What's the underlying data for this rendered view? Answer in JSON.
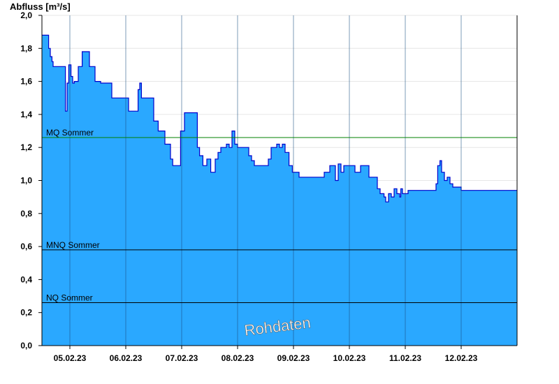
{
  "chart_data": {
    "type": "area",
    "ylabel": "Abfluss [m³/s]",
    "ylim": [
      0,
      2.0
    ],
    "y_ticks": [
      "0,0",
      "0,2",
      "0,4",
      "0,6",
      "0,8",
      "1,0",
      "1,2",
      "1,4",
      "1,6",
      "1,8",
      "2,0"
    ],
    "x_ticks": [
      "05.02.23",
      "06.02.23",
      "07.02.23",
      "08.02.23",
      "09.02.23",
      "10.02.23",
      "11.02.23",
      "12.02.23"
    ],
    "x_range_days": [
      "04.02.23 12:00",
      "13.02.23 00:00"
    ],
    "grid": true,
    "fill_color": "#2aa8ff",
    "line_color": "#0000cc",
    "series": [
      {
        "x_days": [
          0,
          0.12,
          0.15,
          0.18,
          0.2,
          0.22,
          0.25,
          0.4,
          0.42,
          0.45,
          0.48,
          0.52,
          0.55,
          0.58,
          0.65,
          0.72,
          0.76,
          0.85,
          0.88,
          0.95,
          1.05,
          1.25,
          1.55,
          1.63,
          1.72,
          1.75,
          1.78,
          1.82,
          2.0,
          2.08,
          2.2,
          2.3,
          2.34,
          2.37,
          2.42,
          2.48,
          2.55,
          2.68,
          2.78,
          2.82,
          2.88,
          2.95,
          3.02,
          3.1,
          3.15,
          3.2,
          3.25,
          3.3,
          3.35,
          3.4,
          3.45,
          3.5,
          3.55,
          3.6,
          3.65,
          3.7,
          3.75,
          3.8,
          3.85,
          3.88,
          4.05,
          4.1,
          4.15,
          4.2,
          4.25,
          4.3,
          4.35,
          4.42,
          4.48,
          4.55,
          4.6,
          4.65,
          4.8,
          5.05,
          5.15,
          5.25,
          5.3,
          5.35,
          5.4,
          5.45,
          5.5,
          5.55,
          5.6,
          5.7,
          5.85,
          6.0,
          6.05,
          6.12,
          6.15,
          6.2,
          6.25,
          6.3,
          6.35,
          6.4,
          6.42,
          6.45,
          6.55,
          7.0,
          7.05,
          7.08,
          7.12,
          7.15,
          7.2,
          7.25,
          7.3,
          7.35,
          7.5
        ],
        "values": [
          1.88,
          1.8,
          1.75,
          1.72,
          1.69,
          1.69,
          1.69,
          1.69,
          1.42,
          1.59,
          1.7,
          1.63,
          1.59,
          1.6,
          1.69,
          1.78,
          1.78,
          1.69,
          1.69,
          1.6,
          1.59,
          1.5,
          1.42,
          1.42,
          1.55,
          1.59,
          1.5,
          1.5,
          1.36,
          1.3,
          1.22,
          1.13,
          1.09,
          1.09,
          1.09,
          1.3,
          1.41,
          1.41,
          1.2,
          1.15,
          1.09,
          1.13,
          1.05,
          1.13,
          1.17,
          1.2,
          1.2,
          1.22,
          1.2,
          1.3,
          1.22,
          1.2,
          1.2,
          1.2,
          1.2,
          1.15,
          1.12,
          1.09,
          1.09,
          1.09,
          1.13,
          1.2,
          1.2,
          1.22,
          1.2,
          1.22,
          1.17,
          1.09,
          1.05,
          1.05,
          1.02,
          1.02,
          1.02,
          1.05,
          1.09,
          1.0,
          1.1,
          1.05,
          1.09,
          1.09,
          1.09,
          1.09,
          1.05,
          1.09,
          1.02,
          0.95,
          0.92,
          0.9,
          0.87,
          0.92,
          0.9,
          0.95,
          0.92,
          0.9,
          0.95,
          0.92,
          0.94,
          0.94,
          0.98,
          1.09,
          1.12,
          1.05,
          1.0,
          1.02,
          0.98,
          0.96,
          0.94
        ],
        "note": ""
      }
    ],
    "reference_lines": [
      {
        "label": "MQ Sommer",
        "value": 1.26,
        "color": "#008000"
      },
      {
        "label": "MNQ Sommer",
        "value": 0.58,
        "color": "#000000"
      },
      {
        "label": "NQ Sommer",
        "value": 0.26,
        "color": "#000000"
      }
    ],
    "watermark": "Rohdaten"
  }
}
